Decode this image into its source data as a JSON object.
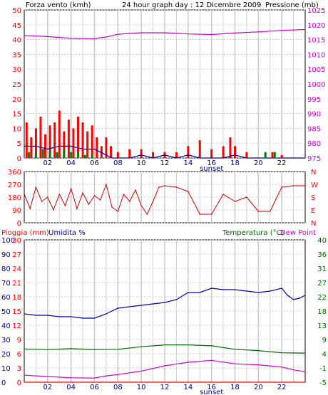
{
  "header": {
    "left": "Forza vento (kmh)",
    "center": "24 hour graph day : 12 Dicembre 2009",
    "right": "Pressione (mb)"
  },
  "colors": {
    "wind": "#ff0000",
    "gust": "#0000aa",
    "avg": "#008000",
    "pressure": "#cc00cc",
    "rain": "#ff0000",
    "humidity": "#0000aa",
    "temperature": "#006600",
    "dewpoint": "#cc00cc",
    "grid": "#c8c8c8"
  },
  "chart_data": [
    {
      "type": "line",
      "panel": "wind",
      "title": "24 hour graph day : 12 Dicembre 2009",
      "ylabel": "Forza vento (kmh)",
      "y2label": "Pressione (mb)",
      "ylim": [
        0,
        50
      ],
      "yticks": [
        "0",
        "5",
        "10",
        "15",
        "20",
        "25",
        "30",
        "35",
        "40",
        "45",
        "50"
      ],
      "y2lim": [
        975,
        1025
      ],
      "y2ticks": [
        "975",
        "980",
        "985",
        "990",
        "995",
        "1000",
        "1005",
        "1010",
        "1015",
        "1020",
        "1025"
      ],
      "xticks": [
        "02",
        "04",
        "06",
        "08",
        "10",
        "12",
        "14",
        "16",
        "18",
        "20",
        "22"
      ],
      "x_marker_label": "sunset",
      "series": [
        {
          "name": "pressure",
          "axis": "right",
          "x": [
            0,
            2,
            4,
            6,
            7,
            8,
            10,
            12,
            14,
            16,
            18,
            20,
            22,
            24
          ],
          "values": [
            1016.4,
            1016.0,
            1015.4,
            1015.3,
            1015.9,
            1016.8,
            1017.3,
            1017.3,
            1016.9,
            1016.7,
            1017.2,
            1017.6,
            1018.1,
            1018.4
          ]
        },
        {
          "name": "wind",
          "axis": "left",
          "style": "bars",
          "x": [
            0.2,
            0.6,
            1.0,
            1.4,
            1.8,
            2.2,
            2.6,
            3.0,
            3.4,
            3.8,
            4.2,
            4.6,
            5.0,
            5.4,
            5.8,
            6.2,
            6.6,
            7.0,
            7.4,
            8.0,
            9.0,
            10.0,
            11.0,
            12.0,
            13.0,
            14.0,
            15.0,
            16.0,
            17.0,
            17.6,
            18.0,
            19.0,
            21.2,
            22.0
          ],
          "values": [
            12,
            7,
            10,
            14,
            8,
            11,
            12,
            16,
            9,
            13,
            10,
            14,
            12,
            9,
            11,
            7,
            4,
            7,
            4,
            2,
            3,
            3,
            2,
            2,
            2,
            4,
            6,
            3,
            4,
            7,
            4,
            2,
            2,
            1
          ]
        },
        {
          "name": "gust",
          "axis": "left",
          "x": [
            0,
            1,
            2,
            3,
            4,
            5,
            6,
            6.5,
            7,
            7.5,
            8,
            9,
            10,
            11,
            12,
            13,
            14,
            15,
            16,
            17,
            18,
            19,
            20,
            21,
            22,
            23,
            24
          ],
          "values": [
            4,
            4,
            3,
            4,
            4,
            3,
            3,
            2,
            1,
            0,
            0,
            0,
            1,
            0,
            1,
            0,
            1,
            0,
            0,
            0,
            1,
            0,
            0,
            0,
            0,
            0,
            0
          ]
        },
        {
          "name": "avg",
          "axis": "left",
          "style": "bars",
          "x": [
            0.4,
            1.0,
            1.6,
            2.2,
            2.8,
            3.4,
            4.0,
            4.6,
            5.2,
            5.8,
            20.6,
            21.4
          ],
          "values": [
            2,
            2,
            3,
            2,
            2,
            3,
            2,
            2,
            1,
            1,
            2,
            2
          ]
        }
      ]
    },
    {
      "type": "scatter",
      "panel": "wind-direction",
      "ylim": [
        0,
        360
      ],
      "yticks": [
        "0",
        "90",
        "180",
        "270",
        "360"
      ],
      "right_labels": [
        "N",
        "W",
        "S",
        "E",
        "N"
      ],
      "series": [
        {
          "name": "direction",
          "x": [
            0,
            0.5,
            1,
            1.5,
            2,
            2.5,
            3,
            3.5,
            4,
            4.5,
            5,
            5.5,
            6,
            6.5,
            7,
            7.5,
            8,
            8.5,
            9,
            9.5,
            10,
            10.5,
            11,
            11.5,
            12,
            13,
            14,
            15,
            16,
            17,
            18,
            19,
            20,
            21,
            22,
            23,
            24
          ],
          "values": [
            200,
            100,
            250,
            150,
            180,
            90,
            200,
            120,
            240,
            100,
            210,
            130,
            190,
            160,
            270,
            110,
            80,
            200,
            150,
            230,
            120,
            60,
            150,
            250,
            260,
            250,
            220,
            60,
            60,
            200,
            150,
            180,
            80,
            80,
            250,
            260,
            260
          ]
        }
      ]
    },
    {
      "type": "line",
      "panel": "temp-hum",
      "header_left": [
        "Pioggia (mm)",
        "Umidita %"
      ],
      "header_right": [
        "Temperatura (°C)",
        "Dew Point"
      ],
      "ylim_humidity": [
        0,
        100
      ],
      "yticks_rain": [
        "0",
        "3",
        "6",
        "9",
        "12",
        "15",
        "18",
        "21",
        "24",
        "27",
        "30"
      ],
      "yticks_humidity": [
        "0",
        "10",
        "20",
        "30",
        "40",
        "50",
        "60",
        "70",
        "80",
        "90",
        "100"
      ],
      "yticks_temp": [
        "-5",
        "-1",
        "4",
        "9",
        "13",
        "18",
        "22",
        "27",
        "31",
        "36",
        "40"
      ],
      "ylim_temp": [
        -5,
        40
      ],
      "xticks": [
        "02",
        "04",
        "06",
        "08",
        "10",
        "12",
        "14",
        "16",
        "18",
        "20",
        "22"
      ],
      "x_marker_label": "sunset",
      "series": [
        {
          "name": "humidity",
          "axis": "humidity",
          "x": [
            0,
            1,
            2,
            3,
            4,
            5,
            6,
            7,
            8,
            9,
            10,
            11,
            12,
            13,
            14,
            15,
            16,
            17,
            18,
            19,
            20,
            21,
            22,
            22.5,
            23,
            23.5,
            24
          ],
          "values": [
            48,
            47,
            47,
            46,
            46,
            45,
            45,
            48,
            52,
            53,
            54,
            55,
            56,
            58,
            63,
            63,
            66,
            65,
            65,
            64,
            63,
            64,
            66,
            61,
            58,
            59,
            61
          ]
        },
        {
          "name": "temperature",
          "axis": "temp",
          "x": [
            0,
            2,
            4,
            6,
            8,
            10,
            12,
            14,
            16,
            18,
            20,
            22,
            24
          ],
          "values": [
            5.5,
            5.3,
            5.6,
            5.3,
            5.4,
            6.2,
            6.8,
            6.8,
            6.5,
            5.4,
            5.0,
            4.3,
            4.2
          ]
        },
        {
          "name": "dewpoint",
          "axis": "temp",
          "x": [
            0,
            2,
            4,
            6,
            7,
            8,
            10,
            12,
            14,
            16,
            18,
            20,
            22,
            23,
            24
          ],
          "values": [
            -2.8,
            -3.2,
            -3.6,
            -3.7,
            -3.0,
            -2.6,
            -1.5,
            0.2,
            1.3,
            1.9,
            0.8,
            0.5,
            -0.2,
            -1.1,
            -1.7
          ]
        },
        {
          "name": "rain",
          "axis": "rain",
          "x": [
            0,
            24
          ],
          "values": [
            0,
            0
          ]
        }
      ]
    }
  ]
}
